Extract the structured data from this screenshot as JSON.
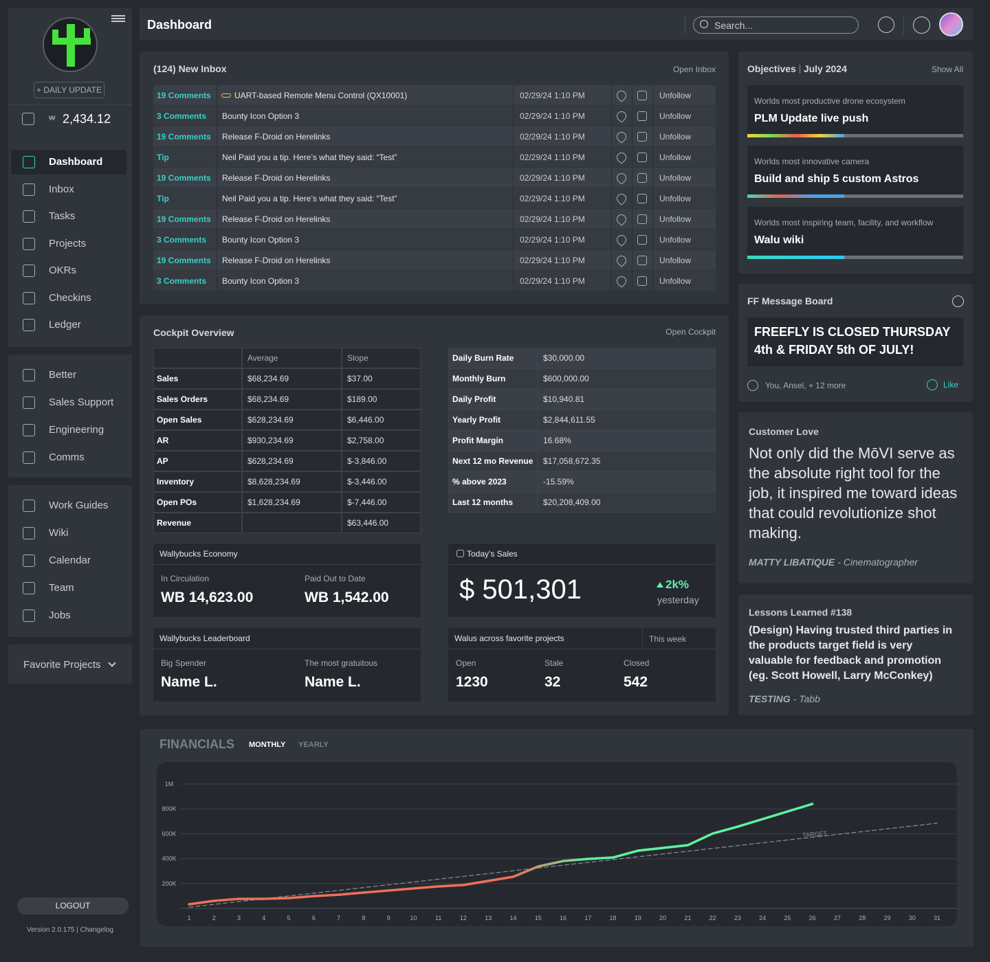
{
  "sidebar": {
    "daily_update": "+ DAILY UPDATE",
    "currency": "₩",
    "balance": "2,434.12",
    "nav_groups": [
      [
        "Dashboard",
        "Inbox",
        "Tasks",
        "Projects",
        "OKRs",
        "Checkins",
        "Ledger"
      ],
      [
        "Better",
        "Sales Support",
        "Engineering",
        "Comms"
      ],
      [
        "Work Guides",
        "Wiki",
        "Calendar",
        "Team",
        "Jobs"
      ]
    ],
    "favorite_projects": "Favorite Projects",
    "logout": "LOGOUT",
    "version": "Version 2.0.175 | Changelog"
  },
  "header": {
    "title": "Dashboard",
    "search_placeholder": "Search..."
  },
  "inbox": {
    "title": "(124) New Inbox",
    "link": "Open Inbox",
    "rows": [
      [
        "19 Comments",
        "UART-based Remote Menu Control (QX10001)",
        "02/29/24 1:10 PM",
        "Unfollow"
      ],
      [
        "3 Comments",
        "Bounty Icon Option 3",
        "02/29/24 1:10 PM",
        "Unfollow"
      ],
      [
        "19 Comments",
        "Release F-Droid on Herelinks",
        "02/29/24 1:10 PM",
        "Unfollow"
      ],
      [
        "Tip",
        "Neil Paid you a tip. Here’s what they said: “Test”",
        "02/29/24 1:10 PM",
        "Unfollow"
      ],
      [
        "19 Comments",
        "Release F-Droid on Herelinks",
        "02/29/24 1:10 PM",
        "Unfollow"
      ],
      [
        "Tip",
        "Neil Paid you a tip. Here’s what they said: “Test”",
        "02/29/24 1:10 PM",
        "Unfollow"
      ],
      [
        "19 Comments",
        "Release F-Droid on Herelinks",
        "02/29/24 1:10 PM",
        "Unfollow"
      ],
      [
        "3 Comments",
        "Bounty Icon Option 3",
        "02/29/24 1:10 PM",
        "Unfollow"
      ],
      [
        "19 Comments",
        "Release F-Droid on Herelinks",
        "02/29/24 1:10 PM",
        "Unfollow"
      ],
      [
        "3 Comments",
        "Bounty Icon Option 3",
        "02/29/24 1:10 PM",
        "Unfollow"
      ]
    ]
  },
  "cockpit": {
    "title": "Cockpit Overview",
    "link": "Open Cockpit",
    "table1": {
      "columns": [
        "Average",
        "Slope"
      ],
      "rows": [
        [
          "Sales",
          "$68,234.69",
          "$37.00"
        ],
        [
          "Sales Orders",
          "$68,234.69",
          "$189.00"
        ],
        [
          "Open Sales",
          "$628,234.69",
          "$6,446.00"
        ],
        [
          "AR",
          "$930,234.69",
          "$2,758.00"
        ],
        [
          "AP",
          "$628,234.69",
          "$-3,846.00"
        ],
        [
          "Inventory",
          "$8,628,234.69",
          "$-3,446.00"
        ],
        [
          "Open POs",
          "$1,628,234.69",
          "$-7,446.00"
        ],
        [
          "Revenue",
          null,
          "$63,446.00"
        ]
      ]
    },
    "table2": {
      "rows": [
        [
          "Daily Burn Rate",
          "$30,000.00"
        ],
        [
          "Monthly Burn",
          "$600,000.00"
        ],
        [
          "Daily Profit",
          "$10,940.81"
        ],
        [
          "Yearly Profit",
          "$2,844,611.55"
        ],
        [
          "Profit Margin",
          "16.68%"
        ],
        [
          "Next 12 mo Revenue",
          "$17,058,672.35"
        ],
        [
          "% above 2023",
          "-15.59%"
        ],
        [
          "Last 12 months",
          "$20,208,409.00"
        ]
      ]
    },
    "wallybucks": {
      "title": "Wallybucks Economy",
      "stats": [
        {
          "label": "In Circulation",
          "value": "WB 14,623.00"
        },
        {
          "label": "Paid Out to Date",
          "value": "WB 1,542.00"
        }
      ]
    },
    "todays_sales": {
      "title": "Today's Sales",
      "value": "$ 501,301",
      "change": "2k%",
      "caption": "yesterday"
    },
    "leaderboard": {
      "title": "Wallybucks Leaderboard",
      "stats": [
        {
          "label": "Big Spender",
          "value": "Name L."
        },
        {
          "label": "The most gratuitous",
          "value": "Name L."
        }
      ]
    },
    "walus": {
      "title": "Walus across favorite projects",
      "period": "This week",
      "stats": [
        {
          "label": "Open",
          "value": "1230"
        },
        {
          "label": "Stale",
          "value": "32"
        },
        {
          "label": "Closed",
          "value": "542"
        }
      ]
    }
  },
  "objectives": {
    "title": "Objectives",
    "period": "July 2024",
    "link": "Show All",
    "items": [
      {
        "subtitle": "Worlds most productive drone ecosystem",
        "title": "PLM Update live push",
        "progress": 45,
        "bar_colors": [
          "#f3d23c",
          "#7ad95a",
          "#e8604f",
          "#f3d23c",
          "#4aa3e8"
        ]
      },
      {
        "subtitle": "Worlds most innovative camera",
        "title": "Build and ship 5 custom Astros",
        "progress": 45,
        "bar_colors": [
          "#3ed6c0",
          "#e8604f",
          "#4aa3e8",
          "#4aa3e8"
        ]
      },
      {
        "subtitle": "Worlds most inspiring team, facility, and workflow",
        "title": "Walu wiki",
        "progress": 45,
        "bar_colors": [
          "#3ed6c0",
          "#28c9f0"
        ]
      }
    ]
  },
  "message_board": {
    "title": "FF Message Board",
    "message": "FREEFLY IS CLOSED THURSDAY 4th & FRIDAY 5th OF JULY!",
    "reactions": "You, Ansel, + 12 more",
    "like": "Like"
  },
  "customer_love": {
    "title": "Customer Love",
    "quote": "Not only did the MōVI serve as the absolute right tool for the job, it inspired me toward ideas that could revolutionize shot making.",
    "author": "MATTY LIBATIQUE",
    "role": "- Cinematographer"
  },
  "lessons": {
    "title": "Lessons Learned #138",
    "text": "(Design) Having trusted third parties in the products target field is very valuable for feedback and promotion (eg. Scott Howell, Larry McConkey)",
    "author": "TESTING",
    "role": "- Tabb"
  },
  "financials": {
    "title": "FINANCIALS",
    "tabs": [
      "MONTHLY",
      "YEARLY"
    ],
    "chart": {
      "type": "line",
      "x": [
        1,
        2,
        3,
        4,
        5,
        6,
        7,
        8,
        9,
        10,
        11,
        12,
        13,
        14,
        15,
        16,
        17,
        18,
        19,
        20,
        21,
        22,
        23,
        24,
        25,
        26,
        27,
        28,
        29,
        30,
        31
      ],
      "xlim": [
        1,
        31
      ],
      "ylim": [
        0,
        1000000
      ],
      "yticks": [
        {
          "value": 200000,
          "label": "200K"
        },
        {
          "value": 400000,
          "label": "400K"
        },
        {
          "value": 600000,
          "label": "600K"
        },
        {
          "value": 800000,
          "label": "800K"
        },
        {
          "value": 1000000,
          "label": "1M"
        }
      ],
      "grid": true,
      "series": [
        {
          "colors": [
            "#f0705a",
            "#5ff2a2"
          ],
          "values": [
            33000,
            61000,
            77000,
            77000,
            83000,
            99000,
            110000,
            127000,
            144000,
            160000,
            177000,
            188000,
            221000,
            254000,
            337000,
            381000,
            398000,
            409000,
            464000,
            486000,
            508000,
            602000,
            657000,
            718000,
            779000,
            840000,
            null,
            null,
            null,
            null,
            null
          ]
        },
        {
          "name": "TARGET",
          "color": "#8a8f96",
          "dashed": true,
          "x": [
            1,
            31
          ],
          "values": [
            10000,
            685000
          ]
        }
      ]
    }
  }
}
